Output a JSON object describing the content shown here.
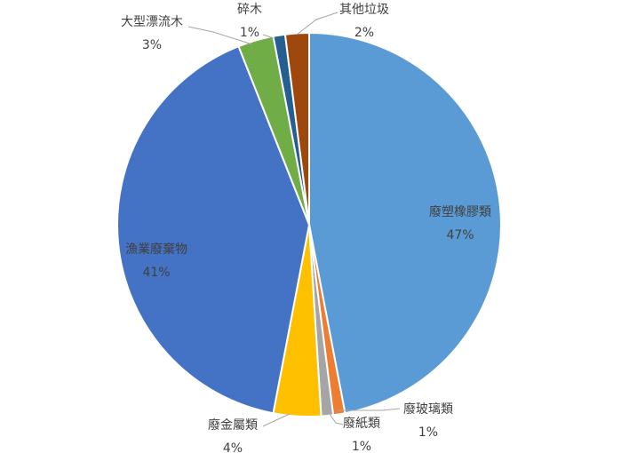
{
  "chart_data": {
    "type": "pie",
    "title": "",
    "slices": [
      {
        "label": "廢塑橡膠類",
        "value": 47,
        "pct_label": "47%",
        "color": "#5b9bd5"
      },
      {
        "label": "廢玻璃類",
        "value": 1,
        "pct_label": "1%",
        "color": "#ed7d31"
      },
      {
        "label": "廢紙類",
        "value": 1,
        "pct_label": "1%",
        "color": "#a5a5a5"
      },
      {
        "label": "廢金屬類",
        "value": 4,
        "pct_label": "4%",
        "color": "#ffc000"
      },
      {
        "label": "漁業廢棄物",
        "value": 41,
        "pct_label": "41%",
        "color": "#4472c4"
      },
      {
        "label": "大型漂流木",
        "value": 3,
        "pct_label": "3%",
        "color": "#70ad47"
      },
      {
        "label": "碎木",
        "value": 1,
        "pct_label": "1%",
        "color": "#255e91"
      },
      {
        "label": "其他垃圾",
        "value": 2,
        "pct_label": "2%",
        "color": "#9e480e"
      }
    ],
    "legend": "none",
    "data_labels": "category-and-percent"
  }
}
